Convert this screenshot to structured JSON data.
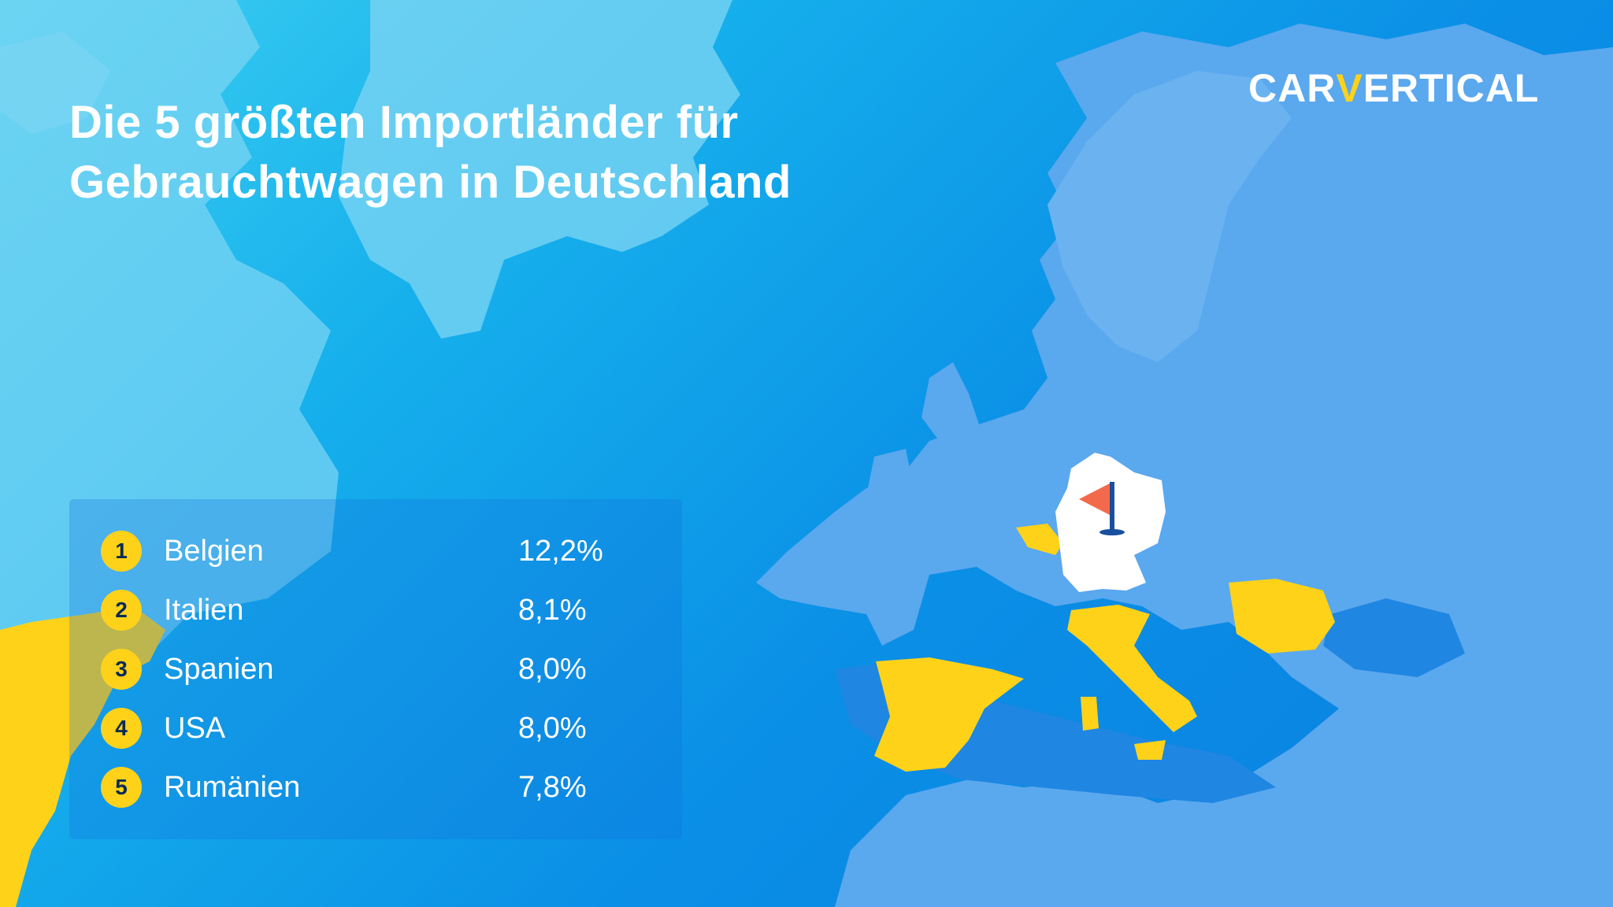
{
  "title": {
    "line1": "Die 5 größten Importländer für",
    "line2": "Gebrauchtwagen in Deutschland"
  },
  "logo": {
    "prefix": "CAR",
    "mark": "V",
    "suffix": "ERTICAL"
  },
  "ranking": [
    {
      "rank": "1",
      "country": "Belgien",
      "share": "12,2%"
    },
    {
      "rank": "2",
      "country": "Italien",
      "share": "8,1%"
    },
    {
      "rank": "3",
      "country": "Spanien",
      "share": "8,0%"
    },
    {
      "rank": "4",
      "country": "USA",
      "share": "8,0%"
    },
    {
      "rank": "5",
      "country": "Rumänien",
      "share": "7,8%"
    }
  ],
  "colors": {
    "highlight_country": "#ffd21a",
    "home_country": "#ffffff",
    "flag": "#f26a4b",
    "land": "#5aa8ee",
    "land_light": "#7fd6f3"
  },
  "map": {
    "home_country": "Deutschland",
    "highlighted": [
      "Belgien",
      "Italien",
      "Spanien",
      "USA",
      "Rumänien"
    ],
    "marker_icon": "flag-icon"
  }
}
